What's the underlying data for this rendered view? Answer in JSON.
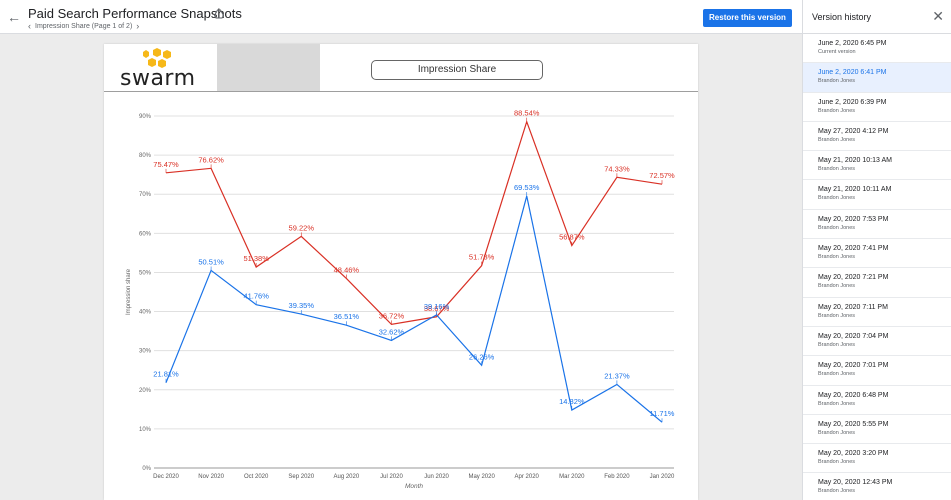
{
  "header": {
    "title": "Paid Search Performance Snapshots",
    "breadcrumb": "Impression Share (Page 1 of 2)",
    "restore_label": "Restore this version"
  },
  "report": {
    "logo_text": "swarm",
    "chart_title": "Impression Share"
  },
  "version_panel": {
    "title": "Version history",
    "items": [
      {
        "date": "June 2, 2020 6:45 PM",
        "sub": "Current version"
      },
      {
        "date": "June 2, 2020 6:41 PM",
        "sub": "Brandon Jones"
      },
      {
        "date": "June 2, 2020 6:39 PM",
        "sub": "Brandon Jones"
      },
      {
        "date": "May 27, 2020 4:12 PM",
        "sub": "Brandon Jones"
      },
      {
        "date": "May 21, 2020 10:13 AM",
        "sub": "Brandon Jones"
      },
      {
        "date": "May 21, 2020 10:11 AM",
        "sub": "Brandon Jones"
      },
      {
        "date": "May 20, 2020 7:53 PM",
        "sub": "Brandon Jones"
      },
      {
        "date": "May 20, 2020 7:41 PM",
        "sub": "Brandon Jones"
      },
      {
        "date": "May 20, 2020 7:21 PM",
        "sub": "Brandon Jones"
      },
      {
        "date": "May 20, 2020 7:11 PM",
        "sub": "Brandon Jones"
      },
      {
        "date": "May 20, 2020 7:04 PM",
        "sub": "Brandon Jones"
      },
      {
        "date": "May 20, 2020 7:01 PM",
        "sub": "Brandon Jones"
      },
      {
        "date": "May 20, 2020 6:48 PM",
        "sub": "Brandon Jones"
      },
      {
        "date": "May 20, 2020 5:55 PM",
        "sub": "Brandon Jones"
      },
      {
        "date": "May 20, 2020 3:20 PM",
        "sub": "Brandon Jones"
      },
      {
        "date": "May 20, 2020 12:43 PM",
        "sub": "Brandon Jones"
      }
    ]
  },
  "colors": {
    "accent": "#1a73e8",
    "series_red": "#d93025",
    "series_blue": "#1a73e8",
    "logo_hex": "#f6b818"
  },
  "chart_data": {
    "type": "line",
    "categories": [
      "Dec 2020",
      "Nov 2020",
      "Oct 2020",
      "Sep 2020",
      "Aug 2020",
      "Jul 2020",
      "Jun 2020",
      "May 2020",
      "Apr 2020",
      "Mar 2020",
      "Feb 2020",
      "Jan 2020"
    ],
    "series": [
      {
        "values": [
          75.47,
          76.62,
          51.38,
          59.22,
          48.46,
          36.72,
          38.67,
          51.73,
          88.54,
          56.87,
          74.33,
          72.57
        ],
        "labels": [
          "75.47%",
          "76.62%",
          "51.38%",
          "59.22%",
          "48.46%",
          "36.72%",
          "38.67%",
          "51.73%",
          "88.54%",
          "56.87%",
          "74.33%",
          "72.57%"
        ],
        "color": "#d93025"
      },
      {
        "values": [
          21.81,
          50.51,
          41.76,
          39.35,
          36.51,
          32.62,
          39.16,
          26.26,
          69.53,
          14.82,
          21.37,
          11.71
        ],
        "labels": [
          "21.81%",
          "50.51%",
          "41.76%",
          "39.35%",
          "36.51%",
          "32.62%",
          "39.16%",
          "26.26%",
          "69.53%",
          "14.82%",
          "21.37%",
          "11.71%"
        ],
        "color": "#1a73e8"
      }
    ],
    "ylabel": "Impression share",
    "xlabel": "Month",
    "ylim": [
      0,
      90
    ],
    "yticks": [
      "0%",
      "10%",
      "20%",
      "30%",
      "40%",
      "50%",
      "60%",
      "70%",
      "80%",
      "90%"
    ],
    "grid": true
  }
}
